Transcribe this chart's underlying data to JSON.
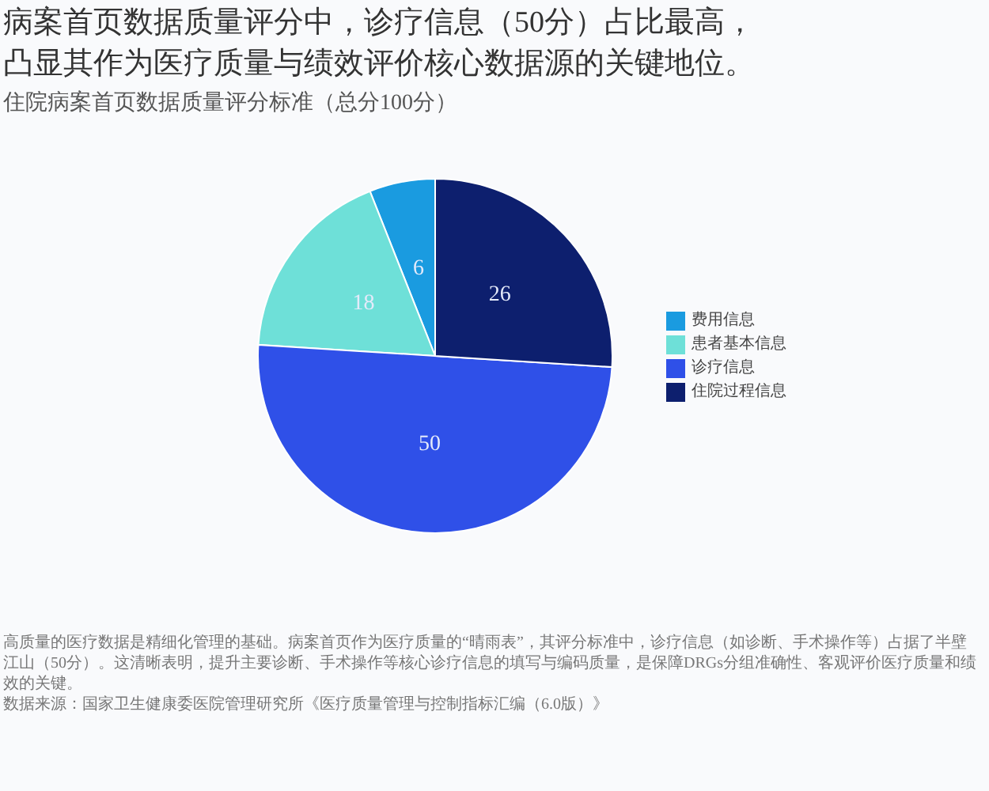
{
  "chart_data": {
    "type": "pie",
    "title": "病案首页数据质量评分中，诊疗信息（50分）占比最高，凸显其作为医疗质量与绩效评价核心数据源的关键地位。",
    "subtitle": "住院病案首页数据质量评分标准（总分100分）",
    "categories": [
      "费用信息",
      "患者基本信息",
      "诊疗信息",
      "住院过程信息"
    ],
    "values": [
      6,
      18,
      50,
      26
    ],
    "colors": [
      "#1a9be0",
      "#6ee0d8",
      "#2f50e8",
      "#0d1f6e"
    ],
    "data_labels": true,
    "legend": "right",
    "annotations": [
      "高质量的医疗数据是精细化管理的基础。病案首页作为医疗质量的“晴雨表”，其评分标准中，诊疗信息（如诊断、手术操作等）占据了半壁江山（50分）。这清晰表明，提升主要诊断、手术操作等核心诊疗信息的填写与编码质量，是保障DRGs分组准确性、客观评价医疗质量和绩效的关键。",
      "数据来源：国家卫生健康委医院管理研究所《医疗质量管理与控制指标汇编（6.0版）》"
    ]
  }
}
